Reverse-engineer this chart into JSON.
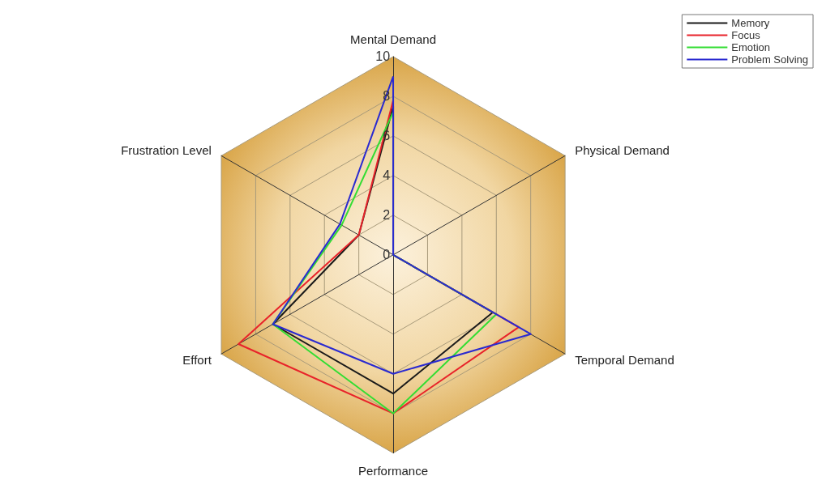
{
  "chart_data": {
    "type": "radar",
    "categories": [
      "Mental Demand",
      "Physical Demand",
      "Temporal Demand",
      "Performance",
      "Effort",
      "Frustration Level"
    ],
    "ylim": [
      0,
      10
    ],
    "yticks": [
      0,
      2,
      4,
      6,
      8,
      10
    ],
    "legend": "top right",
    "grid": true,
    "marker": "none",
    "line_style": "solid",
    "series": [
      {
        "name": "Memory",
        "color": "#1a1a1a",
        "values": [
          7.5,
          0,
          5.8,
          7,
          7,
          2
        ]
      },
      {
        "name": "Focus",
        "color": "#e8232a",
        "values": [
          7.8,
          0,
          7.3,
          8,
          9,
          2
        ]
      },
      {
        "name": "Emotion",
        "color": "#33dd33",
        "values": [
          7.2,
          0,
          6,
          8,
          7,
          3
        ]
      },
      {
        "name": "Problem Solving",
        "color": "#2a2ad0",
        "values": [
          9,
          0,
          8,
          6,
          7,
          3.1
        ]
      }
    ]
  }
}
